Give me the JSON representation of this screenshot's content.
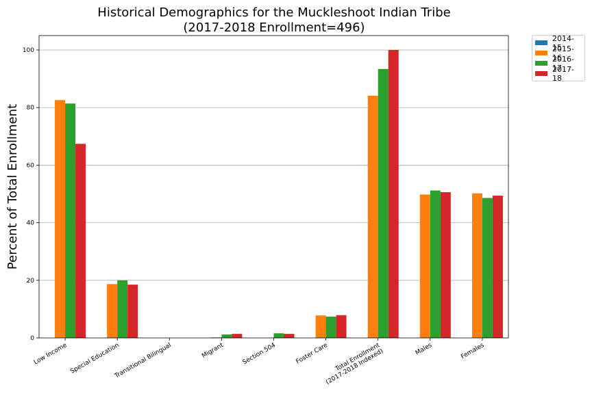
{
  "chart_data": {
    "type": "bar",
    "title": "Historical Demographics for the Muckleshoot Indian Tribe",
    "subtitle": "(2017-2018 Enrollment=496)",
    "xlabel": "",
    "ylabel": "Percent of Total Enrollment",
    "ylim": [
      0,
      105
    ],
    "yticks": [
      0,
      20,
      40,
      60,
      80,
      100
    ],
    "grid": "horizontal",
    "legend_position": "outside-top-right",
    "categories": [
      [
        "Low Income"
      ],
      [
        "Special Education"
      ],
      [
        "Transitional Bilingual"
      ],
      [
        "Migrant"
      ],
      [
        "Section 504"
      ],
      [
        "Foster Care"
      ],
      [
        "Total Enrollment",
        "(2017-2018 Indexed)"
      ],
      [
        "Males"
      ],
      [
        "Females"
      ]
    ],
    "series": [
      {
        "name": "2014-15",
        "color": "#1f77b4",
        "values": [
          0,
          0,
          0,
          0,
          0,
          0,
          0,
          0,
          0
        ]
      },
      {
        "name": "2015-16",
        "color": "#ff7f0e",
        "values": [
          82.6,
          18.7,
          0,
          0.2,
          0,
          7.8,
          84.1,
          49.8,
          50.2
        ]
      },
      {
        "name": "2016-17",
        "color": "#2ca02c",
        "values": [
          81.4,
          20.0,
          0,
          1.2,
          1.6,
          7.4,
          93.4,
          51.2,
          48.6
        ]
      },
      {
        "name": "2017-18",
        "color": "#d62728",
        "values": [
          67.4,
          18.5,
          0,
          1.4,
          1.4,
          7.9,
          100,
          50.6,
          49.4
        ]
      }
    ]
  }
}
